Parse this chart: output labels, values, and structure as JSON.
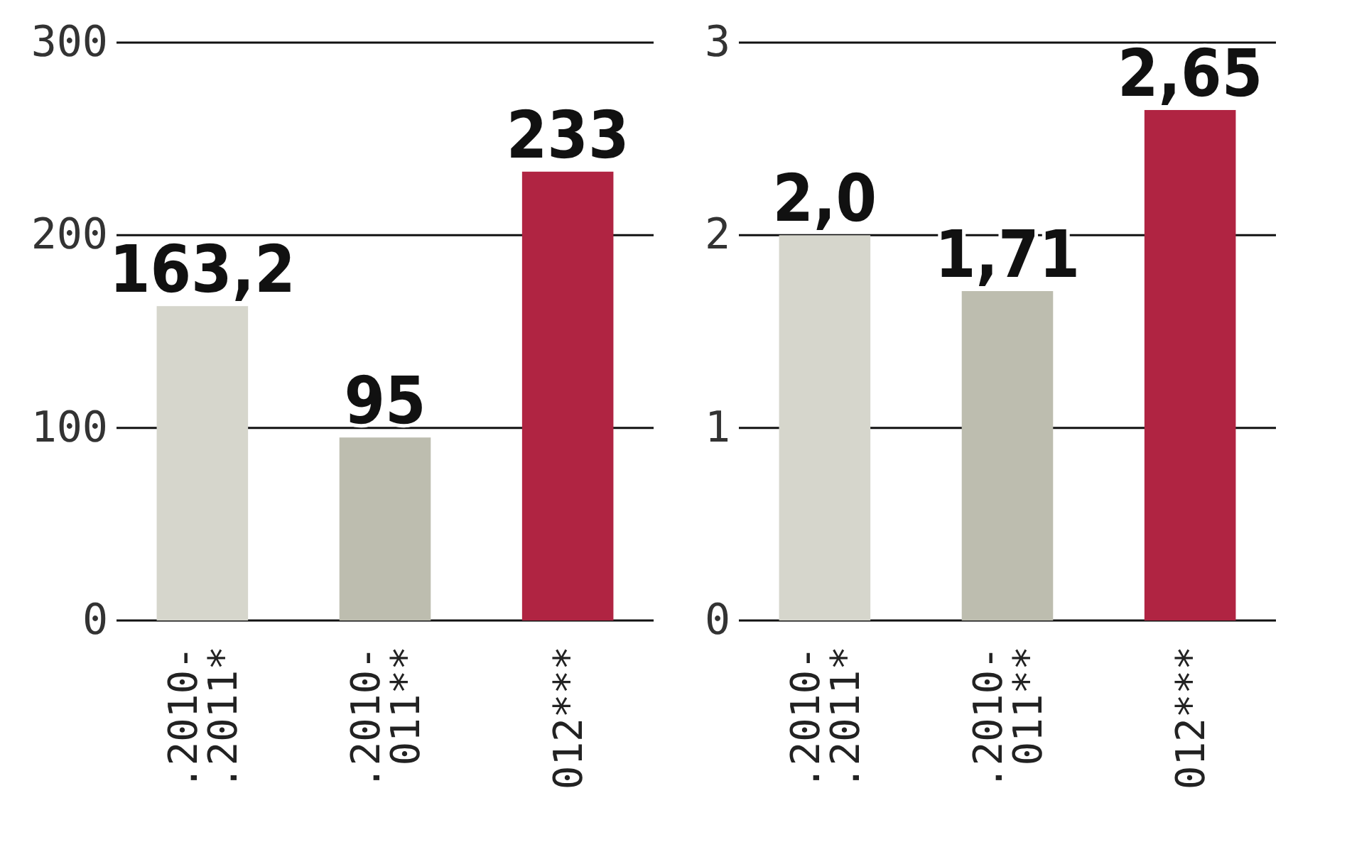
{
  "chart_data": [
    {
      "type": "bar",
      "categories": [
        ".2010-\n.2011*",
        ".2010-\n011**",
        "012***"
      ],
      "values": [
        163.2,
        95,
        233
      ],
      "colors": [
        "#d6d6cc",
        "#bdbdaf",
        "#b02442"
      ],
      "ylim": [
        0,
        300
      ],
      "yticks": [
        0,
        100,
        200,
        300
      ],
      "grid": "y",
      "data_labels": true,
      "value_labels": [
        "163,2",
        "95",
        "233"
      ]
    },
    {
      "type": "bar",
      "categories": [
        ".2010-\n.2011*",
        ".2010-\n011**",
        "012***"
      ],
      "values": [
        2.0,
        1.71,
        2.65
      ],
      "colors": [
        "#d6d6cc",
        "#bdbdaf",
        "#b02442"
      ],
      "ylim": [
        0,
        3
      ],
      "yticks": [
        0,
        1,
        2,
        3
      ],
      "grid": "y",
      "data_labels": true,
      "value_labels": [
        "2,0",
        "1,71",
        "2,65"
      ]
    }
  ]
}
